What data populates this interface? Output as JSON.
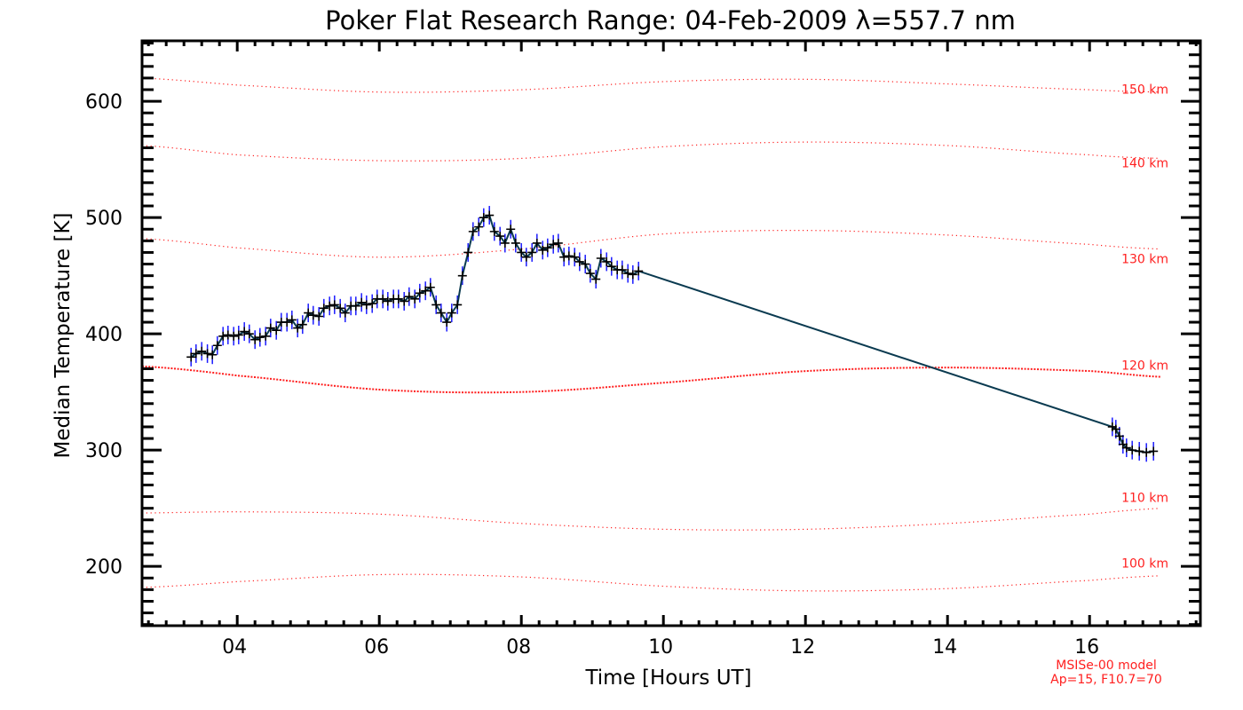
{
  "chart_data": {
    "type": "line",
    "title": "Poker Flat Research Range: 04-Feb-2009 λ=557.7 nm",
    "xlabel": "Time [Hours UT]",
    "ylabel": "Median Temperature [K]",
    "xlim": [
      2.66,
      17.56
    ],
    "ylim": [
      149,
      652
    ],
    "xticks": [
      4,
      6,
      8,
      10,
      12,
      14,
      16
    ],
    "xtick_labels": [
      "04",
      "06",
      "08",
      "10",
      "12",
      "14",
      "16"
    ],
    "yticks": [
      200,
      300,
      400,
      500,
      600
    ],
    "ytick_labels": [
      "200",
      "300",
      "400",
      "500",
      "600"
    ],
    "grid": false,
    "error_bar": 8,
    "colors": {
      "data_line": "#0a3a50",
      "markers": "#000000",
      "error_bars": "#1a1aff",
      "model": "#ff2020"
    },
    "series": [
      {
        "name": "Median temperature",
        "x": [
          3.35,
          3.42,
          3.5,
          3.58,
          3.65,
          3.72,
          3.8,
          3.87,
          3.95,
          4.02,
          4.1,
          4.17,
          4.25,
          4.32,
          4.4,
          4.47,
          4.55,
          4.62,
          4.7,
          4.77,
          4.85,
          4.92,
          5.0,
          5.07,
          5.15,
          5.22,
          5.3,
          5.37,
          5.45,
          5.52,
          5.6,
          5.67,
          5.75,
          5.82,
          5.9,
          5.97,
          6.05,
          6.12,
          6.2,
          6.27,
          6.35,
          6.42,
          6.5,
          6.57,
          6.65,
          6.72,
          6.8,
          6.87,
          6.95,
          7.02,
          7.1,
          7.17,
          7.25,
          7.32,
          7.4,
          7.47,
          7.55,
          7.62,
          7.7,
          7.77,
          7.85,
          7.92,
          8.0,
          8.07,
          8.15,
          8.22,
          8.3,
          8.37,
          8.45,
          8.52,
          8.6,
          8.67,
          8.75,
          8.82,
          8.9,
          8.97,
          9.05,
          9.12,
          9.2,
          9.27,
          9.35,
          9.42,
          9.5,
          9.57,
          9.65,
          16.32,
          16.37,
          16.42,
          16.47,
          16.52,
          16.6,
          16.7,
          16.8,
          16.9
        ],
        "y": [
          380,
          383,
          385,
          383,
          382,
          390,
          398,
          399,
          398,
          399,
          402,
          400,
          395,
          397,
          398,
          405,
          403,
          410,
          410,
          412,
          405,
          408,
          418,
          416,
          415,
          422,
          424,
          425,
          422,
          418,
          424,
          424,
          427,
          425,
          426,
          430,
          430,
          428,
          430,
          430,
          428,
          432,
          430,
          435,
          437,
          440,
          425,
          418,
          410,
          418,
          425,
          450,
          470,
          488,
          492,
          500,
          502,
          488,
          484,
          478,
          490,
          478,
          470,
          466,
          470,
          478,
          472,
          474,
          477,
          478,
          466,
          467,
          466,
          462,
          460,
          452,
          447,
          465,
          462,
          458,
          455,
          455,
          452,
          451,
          454,
          320,
          318,
          312,
          305,
          302,
          300,
          299,
          298,
          299
        ]
      }
    ],
    "model_curves": [
      {
        "label": "150 km",
        "x": [
          2.66,
          4,
          6,
          8,
          10,
          12,
          14,
          16,
          17
        ],
        "y": [
          620,
          614,
          608,
          610,
          617,
          619,
          615,
          610,
          608
        ]
      },
      {
        "label": "140 km",
        "x": [
          2.66,
          4,
          6,
          8,
          10,
          12,
          14,
          16,
          17
        ],
        "y": [
          562,
          554,
          549,
          551,
          561,
          565,
          562,
          554,
          551
        ]
      },
      {
        "label": "130 km",
        "x": [
          2.66,
          4,
          6,
          8,
          10,
          12,
          14,
          16,
          17
        ],
        "y": [
          482,
          474,
          466,
          473,
          486,
          489,
          485,
          477,
          473
        ]
      },
      {
        "label": "120 km",
        "x": [
          2.66,
          4,
          6,
          8,
          10,
          12,
          14,
          16,
          17
        ],
        "y": [
          372,
          364,
          352,
          350,
          358,
          368,
          371,
          368,
          363
        ]
      },
      {
        "label": "110 km",
        "x": [
          2.66,
          4,
          6,
          8,
          10,
          12,
          14,
          16,
          17
        ],
        "y": [
          246,
          247,
          245,
          237,
          232,
          232,
          237,
          245,
          250
        ]
      },
      {
        "label": "100 km",
        "x": [
          2.66,
          4,
          6,
          8,
          10,
          12,
          14,
          16,
          17
        ],
        "y": [
          182,
          187,
          193,
          191,
          183,
          179,
          181,
          188,
          192
        ]
      }
    ],
    "annotations": [
      "MSISe-00 model",
      "Ap=15, F10.7=70"
    ]
  }
}
